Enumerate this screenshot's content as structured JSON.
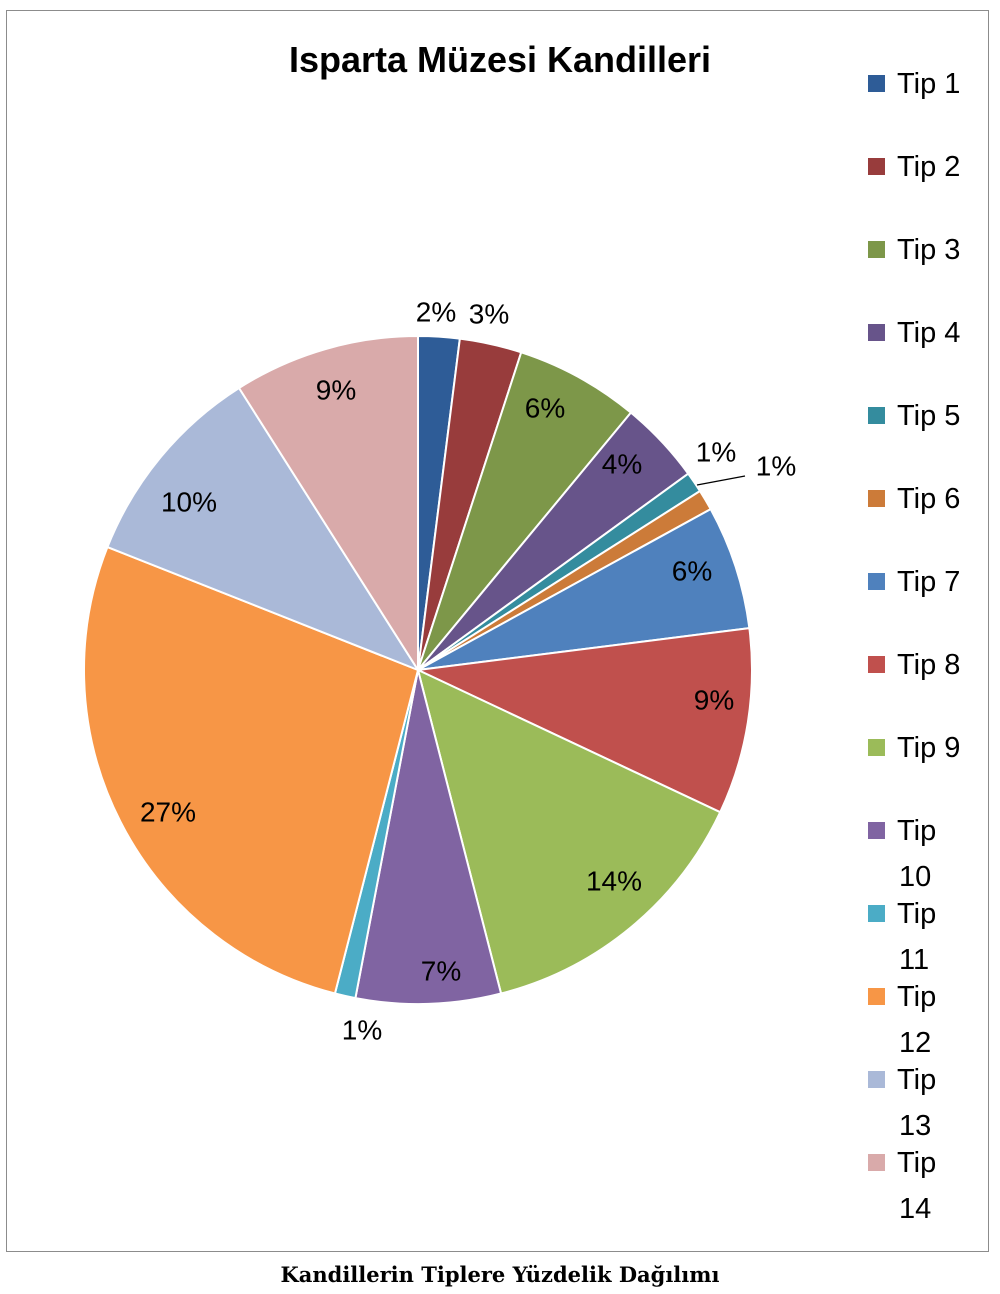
{
  "chart_data": {
    "type": "pie",
    "title": "Isparta Müzesi Kandilleri",
    "legend_position": "right",
    "slices": [
      {
        "label": "Tip 1",
        "value": 2,
        "display": "2%",
        "color": "#2E5C97"
      },
      {
        "label": "Tip 2",
        "value": 3,
        "display": "3%",
        "color": "#983C3C"
      },
      {
        "label": "Tip 3",
        "value": 6,
        "display": "6%",
        "color": "#7D9749"
      },
      {
        "label": "Tip 4",
        "value": 4,
        "display": "4%",
        "color": "#67548A"
      },
      {
        "label": "Tip 5",
        "value": 1,
        "display": "1%",
        "color": "#348C9E"
      },
      {
        "label": "Tip 6",
        "value": 1,
        "display": "1%",
        "color": "#CC7B39"
      },
      {
        "label": "Tip 7",
        "value": 6,
        "display": "6%",
        "color": "#4F81BD"
      },
      {
        "label": "Tip 8",
        "value": 9,
        "display": "9%",
        "color": "#C0504D"
      },
      {
        "label": "Tip 9",
        "value": 14,
        "display": "14%",
        "color": "#9BBB59"
      },
      {
        "label": "Tip 10",
        "value": 7,
        "display": "7%",
        "color": "#8064A2"
      },
      {
        "label": "Tip 11",
        "value": 1,
        "display": "1%",
        "color": "#4BACC6"
      },
      {
        "label": "Tip 12",
        "value": 27,
        "display": "27%",
        "color": "#F79646"
      },
      {
        "label": "Tip 13",
        "value": 10,
        "display": "10%",
        "color": "#AAB9D8"
      },
      {
        "label": "Tip 14",
        "value": 9,
        "display": "9%",
        "color": "#D9AAAA"
      }
    ]
  },
  "caption": "Kandillerin Tiplere Yüzdelik Dağılımı"
}
